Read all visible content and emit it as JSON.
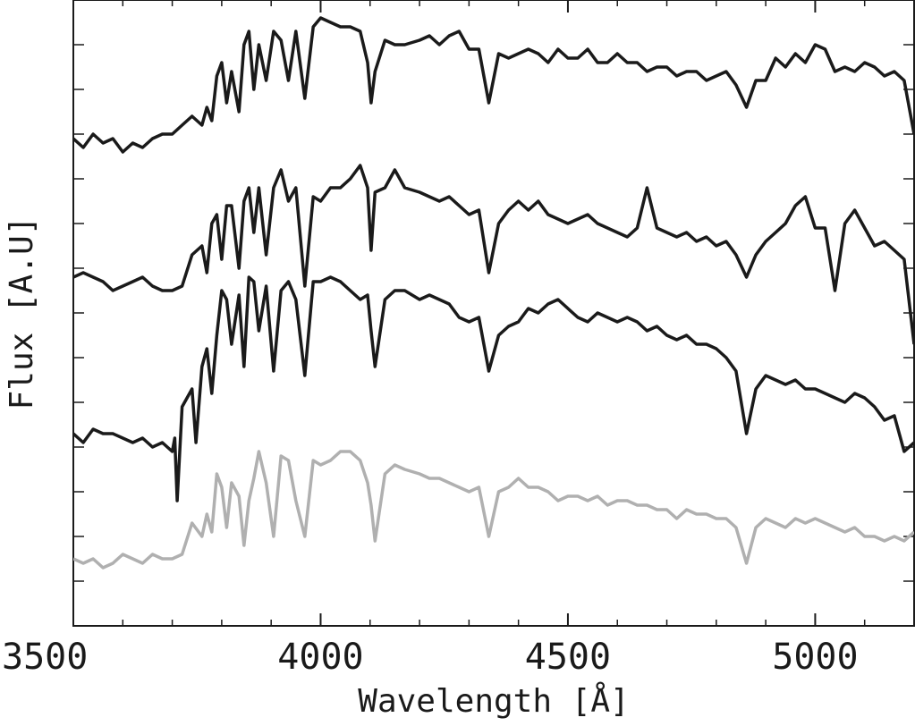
{
  "chart_data": {
    "type": "line",
    "title": "",
    "xlabel": "Wavelength [Å]",
    "ylabel": "Flux [A.U]",
    "xlim": [
      3500,
      5200
    ],
    "ylim": [
      0,
      14
    ],
    "x_ticks": [
      3500,
      4000,
      4500,
      5000
    ],
    "y_tick_labels_shown": false,
    "grid": false,
    "legend": "none",
    "series": [
      {
        "color": "#1a1a1a",
        "x": [
          3500,
          3520,
          3540,
          3560,
          3580,
          3600,
          3620,
          3640,
          3660,
          3680,
          3700,
          3720,
          3740,
          3760,
          3770,
          3780,
          3790,
          3800,
          3810,
          3820,
          3835,
          3845,
          3855,
          3865,
          3875,
          3890,
          3905,
          3920,
          3935,
          3950,
          3968,
          3985,
          4000,
          4020,
          4040,
          4060,
          4080,
          4095,
          4102,
          4110,
          4130,
          4150,
          4170,
          4200,
          4220,
          4240,
          4260,
          4280,
          4300,
          4320,
          4340,
          4360,
          4380,
          4400,
          4420,
          4440,
          4460,
          4480,
          4500,
          4520,
          4540,
          4560,
          4580,
          4600,
          4620,
          4640,
          4660,
          4680,
          4700,
          4720,
          4740,
          4760,
          4780,
          4800,
          4820,
          4840,
          4861,
          4880,
          4900,
          4920,
          4940,
          4960,
          4980,
          5000,
          5020,
          5040,
          5060,
          5080,
          5100,
          5120,
          5140,
          5160,
          5180,
          5200
        ],
        "y": [
          10.9,
          10.7,
          11.0,
          10.8,
          10.9,
          10.6,
          10.8,
          10.7,
          10.9,
          11.0,
          11.0,
          11.2,
          11.4,
          11.2,
          11.6,
          11.3,
          12.3,
          12.6,
          11.7,
          12.4,
          11.5,
          13.0,
          13.3,
          12.0,
          13.0,
          12.2,
          13.3,
          13.1,
          12.2,
          13.3,
          11.8,
          13.4,
          13.6,
          13.5,
          13.4,
          13.4,
          13.3,
          12.6,
          11.7,
          12.4,
          13.1,
          13.0,
          13.0,
          13.1,
          13.2,
          13.0,
          13.2,
          13.3,
          12.9,
          12.9,
          11.7,
          12.8,
          12.7,
          12.8,
          12.9,
          12.8,
          12.6,
          12.9,
          12.7,
          12.7,
          12.9,
          12.6,
          12.6,
          12.8,
          12.6,
          12.6,
          12.4,
          12.5,
          12.5,
          12.3,
          12.4,
          12.4,
          12.2,
          12.3,
          12.4,
          12.1,
          11.6,
          12.2,
          12.2,
          12.7,
          12.5,
          12.8,
          12.6,
          13.0,
          12.9,
          12.4,
          12.5,
          12.4,
          12.6,
          12.5,
          12.3,
          12.4,
          12.2,
          11.0
        ]
      },
      {
        "color": "#1a1a1a",
        "x": [
          3500,
          3520,
          3540,
          3560,
          3580,
          3600,
          3620,
          3640,
          3660,
          3680,
          3700,
          3720,
          3740,
          3760,
          3770,
          3780,
          3790,
          3800,
          3810,
          3820,
          3835,
          3845,
          3855,
          3865,
          3875,
          3890,
          3905,
          3920,
          3935,
          3950,
          3968,
          3985,
          4000,
          4020,
          4040,
          4060,
          4080,
          4095,
          4102,
          4110,
          4130,
          4150,
          4170,
          4200,
          4220,
          4240,
          4260,
          4280,
          4300,
          4320,
          4340,
          4360,
          4380,
          4400,
          4420,
          4440,
          4460,
          4480,
          4500,
          4520,
          4540,
          4560,
          4580,
          4600,
          4620,
          4640,
          4660,
          4680,
          4700,
          4720,
          4740,
          4760,
          4780,
          4800,
          4820,
          4840,
          4861,
          4880,
          4900,
          4920,
          4940,
          4960,
          4980,
          5000,
          5020,
          5040,
          5060,
          5080,
          5100,
          5120,
          5140,
          5160,
          5180,
          5200
        ],
        "y": [
          7.8,
          7.9,
          7.8,
          7.7,
          7.5,
          7.6,
          7.7,
          7.8,
          7.6,
          7.5,
          7.5,
          7.6,
          8.3,
          8.5,
          7.9,
          9.0,
          9.2,
          8.2,
          9.4,
          9.4,
          8.0,
          9.5,
          9.8,
          8.8,
          9.8,
          8.3,
          9.8,
          10.2,
          9.5,
          9.8,
          7.6,
          9.6,
          9.5,
          9.8,
          9.8,
          10.0,
          10.3,
          9.8,
          8.4,
          9.7,
          9.8,
          10.2,
          9.8,
          9.7,
          9.6,
          9.5,
          9.6,
          9.4,
          9.2,
          9.3,
          7.9,
          9.0,
          9.3,
          9.5,
          9.3,
          9.5,
          9.2,
          9.1,
          9.0,
          9.1,
          9.2,
          9.0,
          8.9,
          8.8,
          8.7,
          8.9,
          9.8,
          8.9,
          8.8,
          8.7,
          8.8,
          8.6,
          8.7,
          8.5,
          8.6,
          8.3,
          7.8,
          8.3,
          8.6,
          8.8,
          9.0,
          9.4,
          9.6,
          8.9,
          8.9,
          7.5,
          9.0,
          9.3,
          8.9,
          8.5,
          8.6,
          8.4,
          8.2,
          6.3
        ]
      },
      {
        "color": "#1a1a1a",
        "x": [
          3500,
          3520,
          3540,
          3560,
          3580,
          3600,
          3620,
          3640,
          3660,
          3680,
          3700,
          3705,
          3710,
          3720,
          3740,
          3748,
          3760,
          3770,
          3780,
          3790,
          3800,
          3810,
          3820,
          3835,
          3845,
          3855,
          3865,
          3875,
          3890,
          3905,
          3920,
          3935,
          3950,
          3968,
          3985,
          4000,
          4020,
          4040,
          4060,
          4080,
          4095,
          4102,
          4110,
          4130,
          4150,
          4170,
          4200,
          4220,
          4240,
          4260,
          4280,
          4300,
          4320,
          4340,
          4360,
          4380,
          4400,
          4420,
          4440,
          4460,
          4480,
          4500,
          4520,
          4540,
          4560,
          4580,
          4600,
          4620,
          4640,
          4660,
          4680,
          4700,
          4720,
          4740,
          4760,
          4780,
          4800,
          4820,
          4840,
          4861,
          4880,
          4900,
          4920,
          4940,
          4960,
          4980,
          5000,
          5020,
          5040,
          5060,
          5080,
          5100,
          5120,
          5140,
          5160,
          5180,
          5200
        ],
        "y": [
          4.3,
          4.1,
          4.4,
          4.3,
          4.3,
          4.2,
          4.1,
          4.2,
          4.0,
          4.1,
          3.9,
          4.2,
          2.8,
          4.9,
          5.3,
          4.1,
          5.8,
          6.2,
          5.2,
          6.5,
          7.5,
          7.3,
          6.3,
          7.4,
          5.8,
          7.8,
          7.7,
          6.6,
          7.6,
          5.7,
          7.5,
          7.7,
          7.3,
          5.6,
          7.7,
          7.7,
          7.8,
          7.7,
          7.5,
          7.3,
          7.4,
          6.6,
          5.8,
          7.3,
          7.5,
          7.5,
          7.3,
          7.4,
          7.3,
          7.2,
          6.9,
          6.8,
          6.9,
          5.7,
          6.5,
          6.7,
          6.8,
          7.1,
          7.0,
          7.2,
          7.3,
          7.1,
          6.9,
          6.8,
          7.0,
          6.9,
          6.8,
          6.9,
          6.8,
          6.6,
          6.7,
          6.5,
          6.4,
          6.5,
          6.3,
          6.3,
          6.2,
          6.0,
          5.7,
          4.3,
          5.3,
          5.6,
          5.5,
          5.4,
          5.5,
          5.3,
          5.3,
          5.2,
          5.1,
          5.0,
          5.2,
          5.1,
          4.9,
          4.6,
          4.7,
          3.9,
          4.1
        ]
      },
      {
        "color": "#b0b0b0",
        "x": [
          3500,
          3520,
          3540,
          3560,
          3580,
          3600,
          3620,
          3640,
          3660,
          3680,
          3700,
          3720,
          3740,
          3760,
          3770,
          3780,
          3790,
          3800,
          3810,
          3820,
          3835,
          3845,
          3855,
          3865,
          3875,
          3890,
          3905,
          3920,
          3935,
          3950,
          3968,
          3985,
          4000,
          4020,
          4040,
          4060,
          4080,
          4095,
          4102,
          4110,
          4130,
          4150,
          4170,
          4200,
          4220,
          4240,
          4260,
          4280,
          4300,
          4320,
          4340,
          4360,
          4380,
          4400,
          4420,
          4440,
          4460,
          4480,
          4500,
          4520,
          4540,
          4560,
          4580,
          4600,
          4620,
          4640,
          4660,
          4680,
          4700,
          4720,
          4740,
          4760,
          4780,
          4800,
          4820,
          4840,
          4861,
          4880,
          4900,
          4920,
          4940,
          4960,
          4980,
          5000,
          5020,
          5040,
          5060,
          5080,
          5100,
          5120,
          5140,
          5160,
          5180,
          5200
        ],
        "y": [
          1.5,
          1.4,
          1.5,
          1.3,
          1.4,
          1.6,
          1.5,
          1.4,
          1.6,
          1.5,
          1.5,
          1.6,
          2.3,
          2.0,
          2.5,
          2.1,
          3.4,
          3.1,
          2.2,
          3.2,
          2.9,
          1.8,
          2.8,
          3.3,
          3.9,
          3.2,
          2.0,
          3.8,
          3.7,
          2.8,
          2.0,
          3.7,
          3.6,
          3.7,
          3.9,
          3.9,
          3.7,
          3.2,
          2.7,
          1.9,
          3.4,
          3.6,
          3.5,
          3.4,
          3.3,
          3.3,
          3.2,
          3.1,
          3.0,
          3.1,
          2.0,
          3.0,
          3.1,
          3.3,
          3.1,
          3.1,
          3.0,
          2.8,
          2.9,
          2.9,
          2.8,
          2.9,
          2.7,
          2.8,
          2.8,
          2.7,
          2.7,
          2.6,
          2.6,
          2.4,
          2.6,
          2.5,
          2.5,
          2.4,
          2.4,
          2.2,
          1.4,
          2.2,
          2.4,
          2.3,
          2.2,
          2.4,
          2.3,
          2.4,
          2.3,
          2.2,
          2.1,
          2.2,
          2.0,
          2.0,
          1.9,
          2.0,
          1.9,
          2.1
        ]
      }
    ]
  }
}
